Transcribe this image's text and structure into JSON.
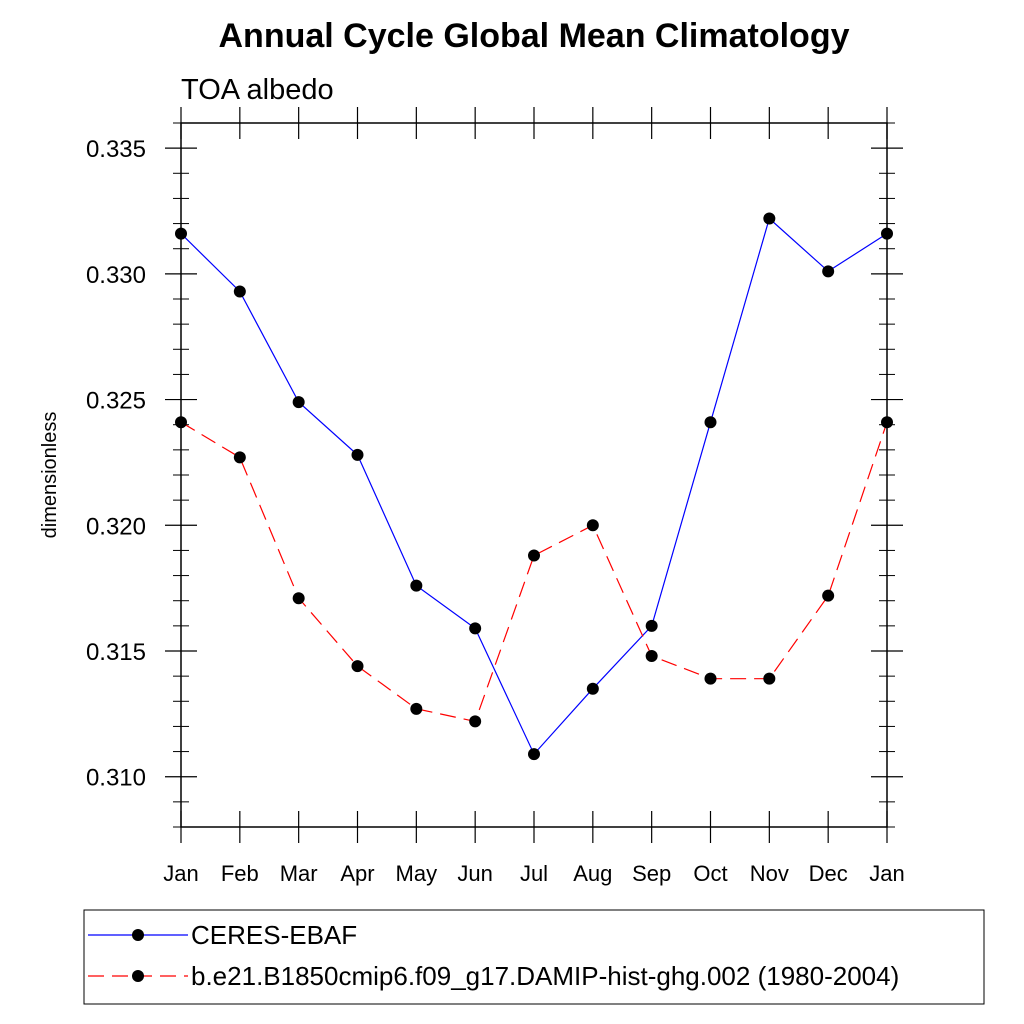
{
  "chart_data": {
    "type": "line",
    "title": "Annual Cycle Global Mean Climatology",
    "subtitle": "TOA albedo",
    "xlabel": "",
    "ylabel": "dimensionless",
    "categories": [
      "Jan",
      "Feb",
      "Mar",
      "Apr",
      "May",
      "Jun",
      "Jul",
      "Aug",
      "Sep",
      "Oct",
      "Nov",
      "Dec",
      "Jan"
    ],
    "ylim": [
      0.308,
      0.336
    ],
    "yticks": [
      0.31,
      0.315,
      0.32,
      0.325,
      0.33,
      0.335
    ],
    "ytick_labels": [
      "0.310",
      "0.315",
      "0.320",
      "0.325",
      "0.330",
      "0.335"
    ],
    "grid": false,
    "legend_position": "bottom",
    "series": [
      {
        "name": "CERES-EBAF",
        "color": "#0000ff",
        "line_style": "solid",
        "marker": "filled-circle",
        "values": [
          0.3316,
          0.3293,
          0.3249,
          0.3228,
          0.3176,
          0.3159,
          0.3109,
          0.3135,
          0.316,
          0.3241,
          0.3322,
          0.3301,
          0.3316
        ]
      },
      {
        "name": "b.e21.B1850cmip6.f09_g17.DAMIP-hist-ghg.002 (1980-2004)",
        "color": "#ff0000",
        "line_style": "dashed",
        "marker": "filled-circle",
        "values": [
          0.3241,
          0.3227,
          0.3171,
          0.3144,
          0.3127,
          0.3122,
          0.3188,
          0.32,
          0.3148,
          0.3139,
          0.3139,
          0.3172,
          0.3241
        ]
      }
    ]
  }
}
